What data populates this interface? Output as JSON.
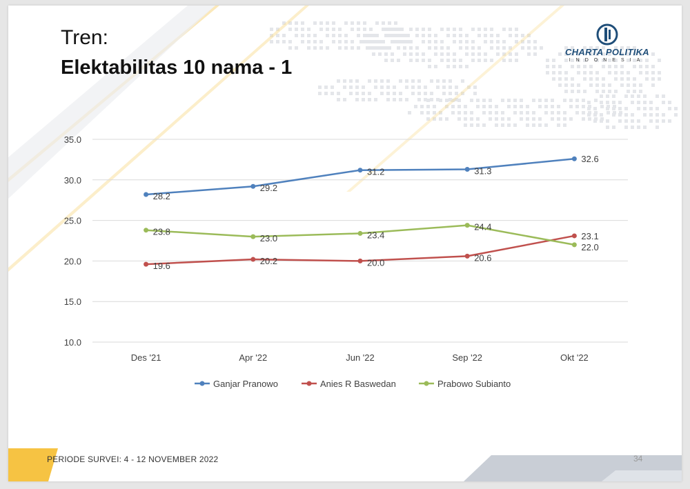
{
  "slide": {
    "title_line1": "Tren:",
    "title_line2": "Elektabilitas 10 nama - 1",
    "logo_name": "CHARTA POLITIKA",
    "logo_sub": "INDONESIA",
    "footer_text": "PERIODE SURVEI: 4 - 12 NOVEMBER 2022",
    "page_number": "34",
    "colors": {
      "accent_gold": "#f6c343",
      "deco_gray": "#c9ced6",
      "logo_blue": "#1f4e79"
    }
  },
  "chart_data": {
    "type": "line",
    "categories": [
      "Des '21",
      "Apr '22",
      "Jun '22",
      "Sep '22",
      "Okt '22"
    ],
    "series": [
      {
        "name": "Ganjar Pranowo",
        "color": "#4f81bd",
        "values": [
          28.2,
          29.2,
          31.2,
          31.3,
          32.6
        ],
        "labels": [
          "28.2",
          "29.2",
          "31.2",
          "31.3",
          "32.6"
        ]
      },
      {
        "name": "Anies R Baswedan",
        "color": "#c0504d",
        "values": [
          19.6,
          20.2,
          20.0,
          20.6,
          23.1
        ],
        "labels": [
          "19.6",
          "20.2",
          "20.0",
          "20.6",
          "23.1"
        ]
      },
      {
        "name": "Prabowo Subianto",
        "color": "#9bbb59",
        "values": [
          23.8,
          23.0,
          23.4,
          24.4,
          22.0
        ],
        "labels": [
          "23.8",
          "23.0",
          "23.4",
          "24.4",
          "22.0"
        ]
      }
    ],
    "ylim": [
      10,
      35
    ],
    "yticks": [
      "10.0",
      "15.0",
      "20.0",
      "25.0",
      "30.0",
      "35.0"
    ],
    "ytick_values": [
      10,
      15,
      20,
      25,
      30,
      35
    ],
    "grid": true,
    "legend_position": "bottom"
  }
}
